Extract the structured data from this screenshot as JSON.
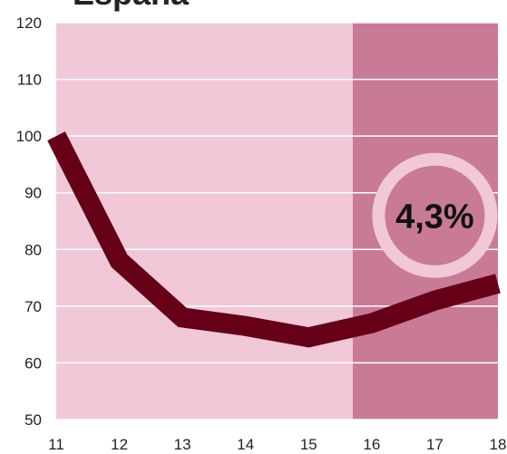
{
  "chart_data": {
    "type": "line",
    "title": "España",
    "x": [
      11,
      12,
      13,
      14,
      15,
      16,
      17,
      18
    ],
    "series": [
      {
        "name": null,
        "color": "#650017",
        "values": [
          100,
          78,
          68,
          66.5,
          64.5,
          67,
          71,
          74
        ]
      }
    ],
    "xlim": [
      11,
      18
    ],
    "xticks": [
      11,
      12,
      13,
      14,
      15,
      16,
      17,
      18
    ],
    "ylim": [
      50,
      120
    ],
    "yticks": [
      50,
      60,
      70,
      80,
      90,
      100,
      110,
      120
    ],
    "grid": true,
    "background": "#f0c8d8",
    "highlight": {
      "range": [
        15.7,
        18
      ],
      "color": "#c97a96"
    },
    "annotation": {
      "text": "4,3%",
      "x": 17,
      "y": 86
    }
  }
}
